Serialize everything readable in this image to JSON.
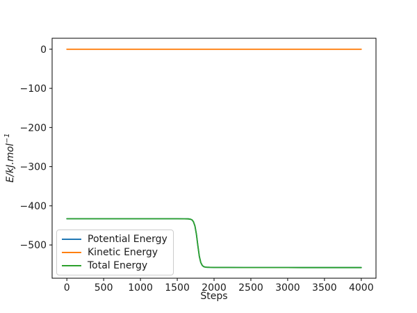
{
  "figure": {
    "background": "#ffffff",
    "text_color": "#1a1a1a",
    "spine_color": "#000000"
  },
  "chart_data": {
    "type": "line",
    "title": "",
    "xlabel": "Steps",
    "ylabel_base": "E/kJ.mol",
    "ylabel_sup": "−1",
    "xlim": [
      -200,
      4200
    ],
    "ylim": [
      -585,
      28
    ],
    "grid": false,
    "x_ticks": [
      0,
      500,
      1000,
      1500,
      2000,
      2500,
      3000,
      3500,
      4000
    ],
    "x_tick_labels": [
      "0",
      "500",
      "1000",
      "1500",
      "2000",
      "2500",
      "3000",
      "3500",
      "4000"
    ],
    "y_ticks": [
      0,
      -100,
      -200,
      -300,
      -400,
      -500
    ],
    "y_tick_labels": [
      "0",
      "−100",
      "−200",
      "−300",
      "−400",
      "−500"
    ],
    "legend": {
      "position": "lower left",
      "border_color": "#cccccc",
      "background": "rgba(255,255,255,0.8)"
    },
    "series": [
      {
        "name": "Potential Energy",
        "color": "#1f77b4",
        "x": [
          0,
          200,
          400,
          600,
          800,
          1000,
          1200,
          1400,
          1500,
          1600,
          1650,
          1680,
          1700,
          1720,
          1740,
          1760,
          1780,
          1800,
          1820,
          1840,
          1860,
          1880,
          1900,
          1950,
          2000,
          2100,
          2200,
          2400,
          2600,
          2800,
          3000,
          3200,
          3400,
          3600,
          3800,
          4000
        ],
        "y": [
          -433,
          -433,
          -433,
          -433,
          -433,
          -433,
          -433,
          -433,
          -433,
          -433.2,
          -433.5,
          -434.3,
          -436,
          -440.5,
          -451.5,
          -472.5,
          -502,
          -529,
          -545,
          -552.5,
          -555.5,
          -556.5,
          -557,
          -557.3,
          -557.4,
          -557.5,
          -557.5,
          -557.6,
          -557.6,
          -557.7,
          -557.7,
          -557.8,
          -557.8,
          -557.8,
          -557.9,
          -557.9
        ]
      },
      {
        "name": "Kinetic Energy",
        "color": "#ff7f0e",
        "x": [
          0,
          500,
          1000,
          1500,
          2000,
          2500,
          3000,
          3500,
          4000
        ],
        "y": [
          0,
          0,
          0,
          0,
          0,
          0,
          0,
          0,
          0
        ]
      },
      {
        "name": "Total Energy",
        "color": "#2ca02c",
        "x": [
          0,
          200,
          400,
          600,
          800,
          1000,
          1200,
          1400,
          1500,
          1600,
          1650,
          1680,
          1700,
          1720,
          1740,
          1760,
          1780,
          1800,
          1820,
          1840,
          1860,
          1880,
          1900,
          1950,
          2000,
          2100,
          2200,
          2400,
          2600,
          2800,
          3000,
          3200,
          3400,
          3600,
          3800,
          4000
        ],
        "y": [
          -433,
          -433,
          -433,
          -433,
          -433,
          -433,
          -433,
          -433,
          -433,
          -433.2,
          -433.5,
          -434.3,
          -436,
          -440.5,
          -451.5,
          -472.5,
          -502,
          -529,
          -545,
          -552.5,
          -555.5,
          -556.5,
          -557,
          -557.3,
          -557.4,
          -557.5,
          -557.5,
          -557.6,
          -557.6,
          -557.7,
          -557.7,
          -557.8,
          -557.8,
          -557.8,
          -557.9,
          -557.9
        ]
      }
    ]
  }
}
